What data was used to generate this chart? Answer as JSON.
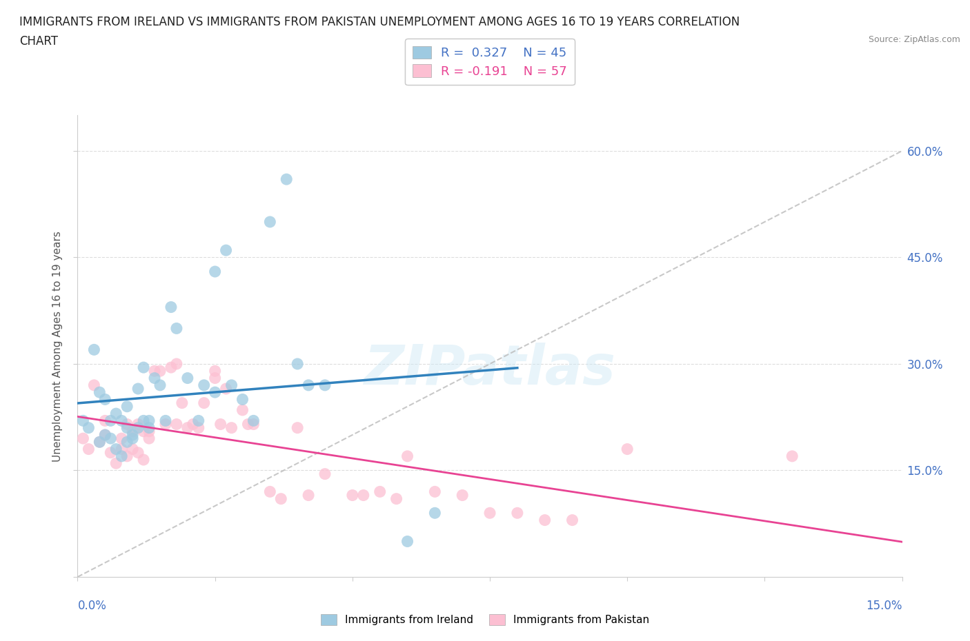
{
  "title_line1": "IMMIGRANTS FROM IRELAND VS IMMIGRANTS FROM PAKISTAN UNEMPLOYMENT AMONG AGES 16 TO 19 YEARS CORRELATION",
  "title_line2": "CHART",
  "source": "Source: ZipAtlas.com",
  "ylabel": "Unemployment Among Ages 16 to 19 years",
  "xlim": [
    0,
    0.15
  ],
  "ylim": [
    0,
    0.65
  ],
  "xticks": [
    0.0,
    0.025,
    0.05,
    0.075,
    0.1,
    0.125,
    0.15
  ],
  "yticks": [
    0.0,
    0.15,
    0.3,
    0.45,
    0.6
  ],
  "ytick_labels_right": [
    "",
    "15.0%",
    "30.0%",
    "45.0%",
    "60.0%"
  ],
  "ireland_color": "#9ecae1",
  "pakistan_color": "#fcbfd2",
  "ireland_label": "Immigrants from Ireland",
  "pakistan_label": "Immigrants from Pakistan",
  "ireland_R": 0.327,
  "ireland_N": 45,
  "pakistan_R": -0.191,
  "pakistan_N": 57,
  "ireland_line_color": "#3182bd",
  "pakistan_line_color": "#e84393",
  "diagonal_color": "#bbbbbb",
  "background_color": "#ffffff",
  "legend_R_color": "#4472c4",
  "bottom_xlabel_color": "#4472c4",
  "right_ytick_color": "#4472c4",
  "ireland_x": [
    0.001,
    0.002,
    0.003,
    0.004,
    0.004,
    0.005,
    0.005,
    0.006,
    0.006,
    0.007,
    0.007,
    0.008,
    0.008,
    0.009,
    0.009,
    0.009,
    0.01,
    0.01,
    0.011,
    0.011,
    0.012,
    0.012,
    0.013,
    0.013,
    0.014,
    0.015,
    0.016,
    0.017,
    0.018,
    0.02,
    0.022,
    0.023,
    0.025,
    0.025,
    0.027,
    0.028,
    0.03,
    0.032,
    0.035,
    0.038,
    0.04,
    0.042,
    0.045,
    0.06,
    0.065
  ],
  "ireland_y": [
    0.22,
    0.21,
    0.32,
    0.19,
    0.26,
    0.2,
    0.25,
    0.195,
    0.22,
    0.18,
    0.23,
    0.17,
    0.22,
    0.19,
    0.21,
    0.24,
    0.2,
    0.195,
    0.21,
    0.265,
    0.22,
    0.295,
    0.22,
    0.21,
    0.28,
    0.27,
    0.22,
    0.38,
    0.35,
    0.28,
    0.22,
    0.27,
    0.26,
    0.43,
    0.46,
    0.27,
    0.25,
    0.22,
    0.5,
    0.56,
    0.3,
    0.27,
    0.27,
    0.05,
    0.09
  ],
  "pakistan_x": [
    0.001,
    0.002,
    0.003,
    0.004,
    0.005,
    0.005,
    0.006,
    0.007,
    0.008,
    0.008,
    0.009,
    0.009,
    0.01,
    0.01,
    0.011,
    0.011,
    0.012,
    0.012,
    0.013,
    0.013,
    0.014,
    0.015,
    0.016,
    0.017,
    0.018,
    0.018,
    0.019,
    0.02,
    0.021,
    0.022,
    0.023,
    0.025,
    0.025,
    0.026,
    0.027,
    0.028,
    0.03,
    0.031,
    0.032,
    0.035,
    0.037,
    0.04,
    0.042,
    0.045,
    0.05,
    0.052,
    0.055,
    0.058,
    0.06,
    0.065,
    0.07,
    0.075,
    0.08,
    0.085,
    0.09,
    0.1,
    0.13
  ],
  "pakistan_y": [
    0.195,
    0.18,
    0.27,
    0.19,
    0.22,
    0.2,
    0.175,
    0.16,
    0.195,
    0.18,
    0.215,
    0.17,
    0.205,
    0.18,
    0.215,
    0.175,
    0.205,
    0.165,
    0.195,
    0.205,
    0.29,
    0.29,
    0.215,
    0.295,
    0.3,
    0.215,
    0.245,
    0.21,
    0.215,
    0.21,
    0.245,
    0.28,
    0.29,
    0.215,
    0.265,
    0.21,
    0.235,
    0.215,
    0.215,
    0.12,
    0.11,
    0.21,
    0.115,
    0.145,
    0.115,
    0.115,
    0.12,
    0.11,
    0.17,
    0.12,
    0.115,
    0.09,
    0.09,
    0.08,
    0.08,
    0.18,
    0.17
  ]
}
